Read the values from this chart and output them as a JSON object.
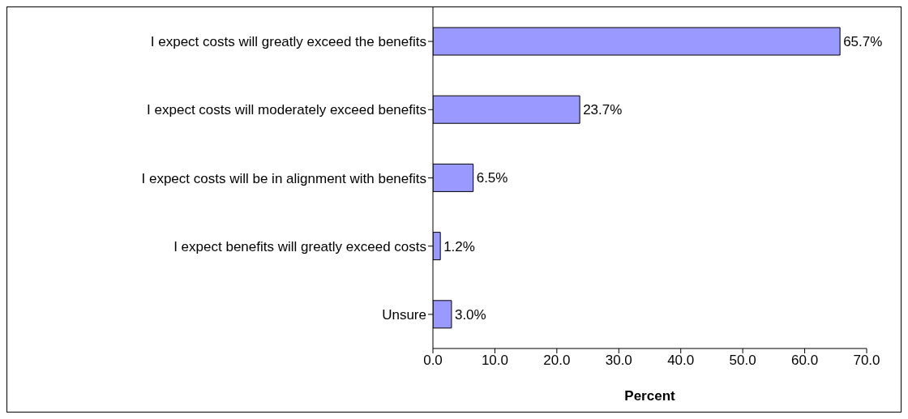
{
  "chart_data": {
    "type": "bar",
    "orientation": "horizontal",
    "xlabel": "Percent",
    "categories": [
      "I expect costs will greatly exceed the benefits",
      "I  expect costs will moderately exceed benefits",
      "I expect costs will be in alignment with benefits",
      "I expect benefits will greatly exceed costs",
      "Unsure"
    ],
    "values": [
      65.7,
      23.7,
      6.5,
      1.2,
      3.0
    ],
    "value_labels": [
      "65.7%",
      "23.7%",
      "6.5%",
      "1.2%",
      "3.0%"
    ],
    "color": "#9999ff",
    "xlim": [
      0,
      70
    ],
    "xticks": [
      {
        "value": 0,
        "label": "0.0"
      },
      {
        "value": 10,
        "label": "10.0"
      },
      {
        "value": 20,
        "label": "20.0"
      },
      {
        "value": 30,
        "label": "30.0"
      },
      {
        "value": 40,
        "label": "40.0"
      },
      {
        "value": 50,
        "label": "50.0"
      },
      {
        "value": 60,
        "label": "60.0"
      },
      {
        "value": 70,
        "label": "70.0"
      }
    ],
    "grid": false,
    "legend": false
  }
}
